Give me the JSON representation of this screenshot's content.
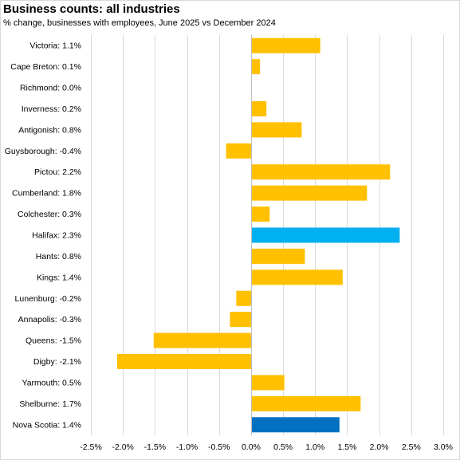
{
  "title": "Business counts: all industries",
  "subtitle": "% change, businesses with employees, June 2025 vs December  2024",
  "chart_data": {
    "type": "bar",
    "orientation": "horizontal",
    "title": "Business counts: all industries",
    "subtitle": "% change, businesses with employees, June 2025 vs December  2024",
    "xlim": [
      -2.5,
      3.0
    ],
    "x_ticks": [
      -2.5,
      -2.0,
      -1.5,
      -1.0,
      -0.5,
      0.0,
      0.5,
      1.0,
      1.5,
      2.0,
      2.5,
      3.0
    ],
    "x_tick_labels": [
      "-2.5%",
      "-2.0%",
      "-1.5%",
      "-1.0%",
      "-0.5%",
      "0.0%",
      "0.5%",
      "1.0%",
      "1.5%",
      "2.0%",
      "2.5%",
      "3.0%"
    ],
    "grid": "vertical",
    "categories": [
      "Victoria: 1.1%",
      "Cape Breton: 0.1%",
      "Richmond: 0.0%",
      "Inverness: 0.2%",
      "Antigonish: 0.8%",
      "Guysborough: -0.4%",
      "Pictou: 2.2%",
      "Cumberland: 1.8%",
      "Colchester: 0.3%",
      "Halifax: 2.3%",
      "Hants: 0.8%",
      "Kings: 1.4%",
      "Lunenburg: -0.2%",
      "Annapolis: -0.3%",
      "Queens: -1.5%",
      "Digby: -2.1%",
      "Yarmouth: 0.5%",
      "Shelburne: 1.7%",
      "Nova Scotia: 1.4%"
    ],
    "values": [
      1.08,
      0.14,
      0.0,
      0.24,
      0.79,
      -0.39,
      2.17,
      1.81,
      0.29,
      2.32,
      0.84,
      1.43,
      -0.23,
      -0.33,
      -1.52,
      -2.09,
      0.52,
      1.71,
      1.38
    ],
    "colors": [
      "#FFC000",
      "#FFC000",
      "#FFC000",
      "#FFC000",
      "#FFC000",
      "#FFC000",
      "#FFC000",
      "#FFC000",
      "#FFC000",
      "#00B0F0",
      "#FFC000",
      "#FFC000",
      "#FFC000",
      "#FFC000",
      "#FFC000",
      "#FFC000",
      "#FFC000",
      "#FFC000",
      "#0070C0"
    ]
  }
}
